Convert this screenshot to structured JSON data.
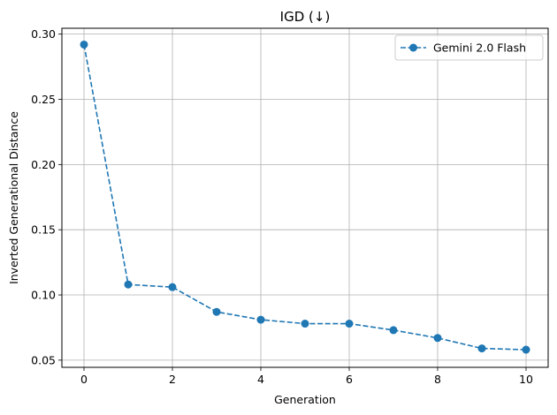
{
  "chart_data": {
    "type": "line",
    "title": "IGD (↓)",
    "xlabel": "Generation",
    "ylabel": "Inverted Generational Distance",
    "xlim": [
      -0.5,
      10.5
    ],
    "ylim": [
      0.0445,
      0.3045
    ],
    "xticks": [
      0,
      2,
      4,
      6,
      8,
      10
    ],
    "yticks": [
      0.05,
      0.1,
      0.15,
      0.2,
      0.25,
      0.3
    ],
    "ytick_labels": [
      "0.05",
      "0.10",
      "0.15",
      "0.20",
      "0.25",
      "0.30"
    ],
    "grid": true,
    "legend_position": "top-right",
    "series": [
      {
        "name": "Gemini 2.0 Flash",
        "color": "#1f77b4",
        "line_style": "dashed",
        "marker": "circle",
        "x": [
          0,
          1,
          2,
          3,
          4,
          5,
          6,
          7,
          8,
          9,
          10
        ],
        "y": [
          0.292,
          0.108,
          0.106,
          0.087,
          0.081,
          0.078,
          0.078,
          0.073,
          0.067,
          0.059,
          0.058
        ]
      }
    ]
  }
}
